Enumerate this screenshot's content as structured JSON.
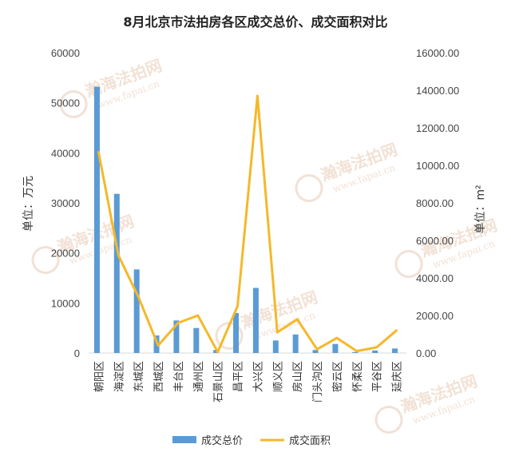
{
  "chart_data": {
    "type": "bar",
    "title": "8月北京市法拍房各区成交总价、成交面积对比",
    "categories": [
      "朝阳区",
      "海淀区",
      "东城区",
      "西城区",
      "丰台区",
      "通州区",
      "石景山区",
      "昌平区",
      "大兴区",
      "顺义区",
      "房山区",
      "门头沟区",
      "密云区",
      "怀柔区",
      "平谷区",
      "延庆区"
    ],
    "ylabel_left": "单位：万元",
    "ylabel_right": "单位：m²",
    "ylim_left": [
      0,
      60000
    ],
    "ylim_right": [
      0,
      16000
    ],
    "yticks_left": [
      "0",
      "10000",
      "20000",
      "30000",
      "40000",
      "50000",
      "60000"
    ],
    "yticks_right": [
      "0.00",
      "2000.00",
      "4000.00",
      "6000.00",
      "8000.00",
      "10000.00",
      "12000.00",
      "14000.00",
      "16000.00"
    ],
    "grid": false,
    "legend_position": "bottom",
    "series": [
      {
        "name": "成交总价",
        "type": "bar",
        "axis": "left",
        "color": "#5b9bd5",
        "values": [
          53200,
          31800,
          16700,
          3500,
          6500,
          5000,
          600,
          8000,
          13000,
          2500,
          3700,
          600,
          1800,
          200,
          500,
          900
        ]
      },
      {
        "name": "成交面积",
        "type": "line",
        "axis": "right",
        "color": "#f5b829",
        "values": [
          10700,
          5200,
          3000,
          400,
          1600,
          2000,
          50,
          2500,
          13700,
          1100,
          1800,
          200,
          800,
          100,
          300,
          1200
        ]
      }
    ]
  },
  "watermark": {
    "brand": "瀚海法拍网",
    "url": "www.fapai.cn"
  }
}
